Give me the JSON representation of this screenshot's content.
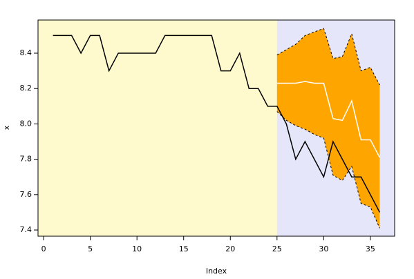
{
  "chart_data": {
    "type": "line",
    "xlabel": "Index",
    "ylabel": "x",
    "x": [
      1,
      2,
      3,
      4,
      5,
      6,
      7,
      8,
      9,
      10,
      11,
      12,
      13,
      14,
      15,
      16,
      17,
      18,
      19,
      20,
      21,
      22,
      23,
      24,
      25,
      26,
      27,
      28,
      29,
      30,
      31,
      32,
      33,
      34,
      35,
      36
    ],
    "series": [
      {
        "color": "#000000",
        "values": [
          8.5,
          8.5,
          8.5,
          8.4,
          8.5,
          8.5,
          8.3,
          8.4,
          8.4,
          8.4,
          8.4,
          8.4,
          8.5,
          8.5,
          8.5,
          8.5,
          8.5,
          8.5,
          8.3,
          8.3,
          8.4,
          8.2,
          8.2,
          8.1,
          8.1,
          8.0,
          7.8,
          7.9,
          7.8,
          7.7,
          7.9,
          7.8,
          7.7,
          7.7,
          7.6,
          7.5
        ]
      },
      {
        "color": "#ffffff",
        "values": [
          null,
          null,
          null,
          null,
          null,
          null,
          null,
          null,
          null,
          null,
          null,
          null,
          null,
          null,
          null,
          null,
          null,
          null,
          null,
          null,
          null,
          null,
          null,
          null,
          8.23,
          8.23,
          8.23,
          8.24,
          8.23,
          8.23,
          8.03,
          8.02,
          8.13,
          7.91,
          7.91,
          7.81
        ]
      }
    ],
    "band": {
      "color": "#ffa500",
      "upper": [
        null,
        null,
        null,
        null,
        null,
        null,
        null,
        null,
        null,
        null,
        null,
        null,
        null,
        null,
        null,
        null,
        null,
        null,
        null,
        null,
        null,
        null,
        null,
        null,
        8.39,
        8.42,
        8.45,
        8.5,
        8.52,
        8.54,
        8.37,
        8.38,
        8.51,
        8.3,
        8.32,
        8.22
      ],
      "lower": [
        null,
        null,
        null,
        null,
        null,
        null,
        null,
        null,
        null,
        null,
        null,
        null,
        null,
        null,
        null,
        null,
        null,
        null,
        null,
        null,
        null,
        null,
        null,
        null,
        8.07,
        8.02,
        7.99,
        7.97,
        7.94,
        7.92,
        7.71,
        7.68,
        7.76,
        7.55,
        7.53,
        7.41
      ]
    },
    "split_x": 25,
    "background_colors": [
      "#fffacd",
      "#e6e6fa"
    ],
    "xlim": [
      -0.6,
      37.6
    ],
    "xticks": [
      0,
      5,
      10,
      15,
      20,
      25,
      30,
      35
    ],
    "ylim": [
      7.365,
      8.5875
    ],
    "yticks": [
      7.4,
      7.6,
      7.8,
      {
        "value": 8,
        "label": "8.0"
      },
      8.2,
      8.4
    ]
  }
}
